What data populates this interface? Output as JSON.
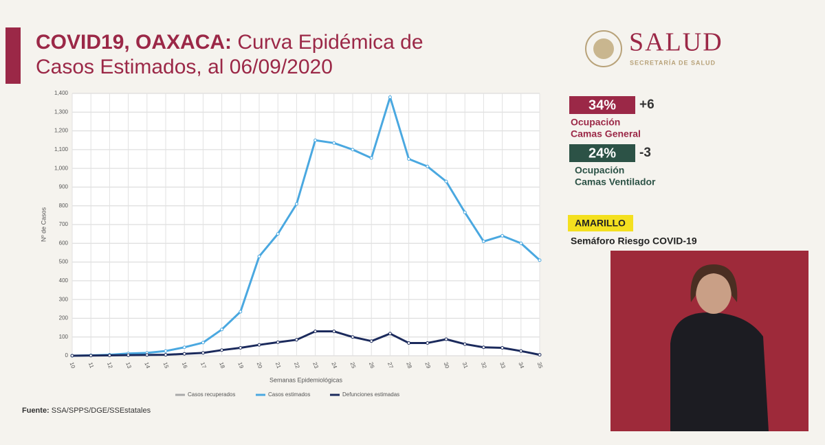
{
  "header": {
    "title_bold": "COVID19, OAXACA:",
    "title_line1": "Curva Epidémica de",
    "title_line2": "Casos Estimados, al 06/09/2020"
  },
  "logo": {
    "name": "SALUD",
    "subtitle": "SECRETARÍA DE SALUD"
  },
  "indicators": [
    {
      "value": "34%",
      "change": "+6",
      "label1": "Ocupación",
      "label2": "Camas General"
    },
    {
      "value": "24%",
      "change": "-3",
      "label1": "Ocupación",
      "label2": "Camas Ventilador"
    }
  ],
  "semaforo": {
    "level": "AMARILLO",
    "label": "Semáforo Riesgo COVID-19"
  },
  "source": {
    "label": "Fuente:",
    "text": "SSA/SPPS/DGE/SSEstatales"
  },
  "chart_data": {
    "type": "line",
    "x_label": "Semanas Epidemiológicas",
    "y_label": "Nº de Casos",
    "categories": [
      "10",
      "11",
      "12",
      "13",
      "14",
      "15",
      "16",
      "17",
      "18",
      "19",
      "20",
      "21",
      "22",
      "23",
      "24",
      "25",
      "26",
      "27",
      "28",
      "29",
      "30",
      "31",
      "32",
      "33",
      "34",
      "35"
    ],
    "series": [
      {
        "name": "Casos recuperados",
        "color": "#a9a9a9",
        "values": [
          null,
          null,
          null,
          null,
          null,
          null,
          null,
          null,
          null,
          null,
          null,
          null,
          null,
          null,
          null,
          null,
          null,
          null,
          null,
          null,
          null,
          null,
          null,
          null,
          null,
          null
        ]
      },
      {
        "name": "Casos estimados",
        "color": "#4aa8e0",
        "values": [
          0,
          2,
          5,
          12,
          15,
          25,
          45,
          70,
          140,
          235,
          530,
          650,
          810,
          1150,
          1135,
          1100,
          1055,
          1380,
          1050,
          1010,
          930,
          765,
          610,
          640,
          600,
          510
        ]
      },
      {
        "name": "Defunciones estimadas",
        "color": "#1b2a5c",
        "values": [
          0,
          1,
          2,
          3,
          4,
          5,
          10,
          15,
          30,
          42,
          58,
          72,
          85,
          130,
          130,
          100,
          78,
          118,
          68,
          68,
          88,
          62,
          45,
          42,
          25,
          5
        ]
      }
    ],
    "ylim": [
      0,
      1400
    ],
    "yticks": [
      0,
      100,
      200,
      300,
      400,
      500,
      600,
      700,
      800,
      900,
      {
        "value": 1000,
        "label": "1,000"
      },
      {
        "value": 1100,
        "label": "1,100"
      },
      {
        "value": 1200,
        "label": "1,200"
      },
      {
        "value": 1300,
        "label": "1,300"
      },
      {
        "value": 1400,
        "label": "1,400"
      }
    ],
    "grid": true,
    "legend": "bottom"
  }
}
